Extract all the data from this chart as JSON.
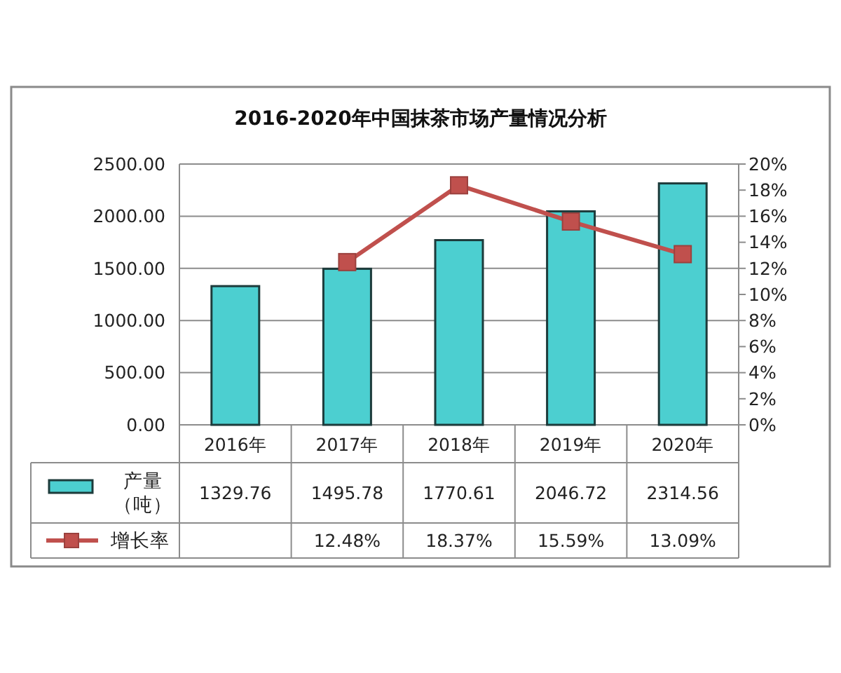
{
  "chart_data": {
    "type": "bar",
    "title": "2016-2020年中国抹茶市场产量情况分析",
    "categories": [
      "2016年",
      "2017年",
      "2018年",
      "2019年",
      "2020年"
    ],
    "series": [
      {
        "name": "产量（吨）",
        "color": "#4ccfd0",
        "values": [
          1329.76,
          1495.78,
          1770.61,
          2046.72,
          2314.56
        ],
        "value_labels": [
          "1329.76",
          "1495.78",
          "1770.61",
          "2046.72",
          "2314.56"
        ]
      },
      {
        "name": "增长率",
        "type": "line",
        "axis": "y2",
        "color": "#c0504d",
        "values": [
          null,
          12.48,
          18.37,
          15.59,
          13.09
        ],
        "value_labels": [
          null,
          "12.48%",
          "18.37%",
          "15.59%",
          "13.09%"
        ]
      }
    ],
    "ylim": [
      0,
      2500
    ],
    "yticks": [
      {
        "value": 0,
        "label": "0.00"
      },
      {
        "value": 500,
        "label": "500.00"
      },
      {
        "value": 1000,
        "label": "1000.00"
      },
      {
        "value": 1500,
        "label": "1500.00"
      },
      {
        "value": 2000,
        "label": "2000.00"
      },
      {
        "value": 2500,
        "label": "2500.00"
      }
    ],
    "y2lim": [
      0,
      20
    ],
    "y2ticks": [
      {
        "value": 0,
        "label": "0%"
      },
      {
        "value": 2,
        "label": "2%"
      },
      {
        "value": 4,
        "label": "4%"
      },
      {
        "value": 6,
        "label": "6%"
      },
      {
        "value": 8,
        "label": "8%"
      },
      {
        "value": 10,
        "label": "10%"
      },
      {
        "value": 12,
        "label": "12%"
      },
      {
        "value": 14,
        "label": "14%"
      },
      {
        "value": 16,
        "label": "16%"
      },
      {
        "value": 18,
        "label": "18%"
      },
      {
        "value": 20,
        "label": "20%"
      }
    ],
    "grid": "y",
    "legend": "bottom",
    "marker": "square",
    "line_style": "solid"
  }
}
